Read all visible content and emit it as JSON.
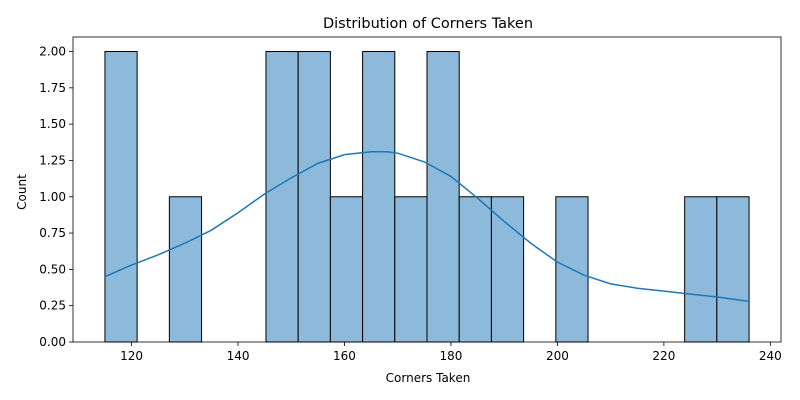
{
  "chart_data": {
    "type": "bar",
    "subtype": "histogram-with-kde",
    "title": "Distribution of Corners Taken",
    "xlabel": "Corners Taken",
    "ylabel": "Count",
    "xlim": [
      109,
      242
    ],
    "ylim": [
      0,
      2.1
    ],
    "xticks": [
      120,
      140,
      160,
      180,
      200,
      220,
      240
    ],
    "yticks": [
      0.0,
      0.25,
      0.5,
      0.75,
      1.0,
      1.25,
      1.5,
      1.75,
      2.0
    ],
    "ytick_labels": [
      "0.00",
      "0.25",
      "0.50",
      "0.75",
      "1.00",
      "1.25",
      "1.50",
      "1.75",
      "2.00"
    ],
    "bin_width": 6.05,
    "bins": [
      {
        "x0": 115.0,
        "x1": 121.05,
        "count": 2
      },
      {
        "x0": 121.05,
        "x1": 127.1,
        "count": 0
      },
      {
        "x0": 127.1,
        "x1": 133.15,
        "count": 1
      },
      {
        "x0": 133.15,
        "x1": 139.2,
        "count": 0
      },
      {
        "x0": 139.2,
        "x1": 145.25,
        "count": 0
      },
      {
        "x0": 145.25,
        "x1": 151.3,
        "count": 2
      },
      {
        "x0": 151.3,
        "x1": 157.35,
        "count": 2
      },
      {
        "x0": 157.35,
        "x1": 163.4,
        "count": 1
      },
      {
        "x0": 163.4,
        "x1": 169.45,
        "count": 2
      },
      {
        "x0": 169.45,
        "x1": 175.5,
        "count": 1
      },
      {
        "x0": 175.5,
        "x1": 181.55,
        "count": 2
      },
      {
        "x0": 181.55,
        "x1": 187.6,
        "count": 1
      },
      {
        "x0": 187.6,
        "x1": 193.65,
        "count": 1
      },
      {
        "x0": 193.65,
        "x1": 199.7,
        "count": 0
      },
      {
        "x0": 199.7,
        "x1": 205.75,
        "count": 1
      },
      {
        "x0": 205.75,
        "x1": 211.8,
        "count": 0
      },
      {
        "x0": 211.8,
        "x1": 217.85,
        "count": 0
      },
      {
        "x0": 217.85,
        "x1": 223.9,
        "count": 0
      },
      {
        "x0": 223.9,
        "x1": 229.95,
        "count": 1
      },
      {
        "x0": 229.95,
        "x1": 236.0,
        "count": 1
      }
    ],
    "kde": {
      "x": [
        115,
        120,
        125,
        130,
        135,
        140,
        145,
        150,
        155,
        160,
        165,
        168,
        170,
        175,
        180,
        185,
        190,
        195,
        200,
        205,
        210,
        215,
        220,
        225,
        230,
        236
      ],
      "y": [
        0.45,
        0.53,
        0.6,
        0.68,
        0.77,
        0.89,
        1.02,
        1.13,
        1.23,
        1.29,
        1.31,
        1.31,
        1.3,
        1.24,
        1.14,
        0.99,
        0.83,
        0.68,
        0.55,
        0.46,
        0.4,
        0.37,
        0.35,
        0.33,
        0.31,
        0.28
      ]
    },
    "bar_color": "#8db9db",
    "bar_edge": "#000000",
    "line_color": "#1f77b4",
    "grid": false,
    "legend": "none"
  }
}
